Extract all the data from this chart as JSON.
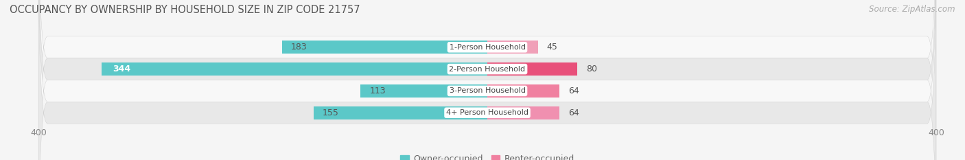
{
  "title": "OCCUPANCY BY OWNERSHIP BY HOUSEHOLD SIZE IN ZIP CODE 21757",
  "source": "Source: ZipAtlas.com",
  "categories": [
    "1-Person Household",
    "2-Person Household",
    "3-Person Household",
    "4+ Person Household"
  ],
  "owner_values": [
    183,
    344,
    113,
    155
  ],
  "renter_values": [
    45,
    80,
    64,
    64
  ],
  "owner_color": "#5bc8c8",
  "renter_color_1": "#f0a0b8",
  "renter_color_2": "#f06090",
  "renter_colors": [
    "#f0a0b8",
    "#e8507a",
    "#f080a0",
    "#f090b0"
  ],
  "axis_max": 400,
  "bg_color": "#f5f5f5",
  "row_bg_light": "#f8f8f8",
  "row_bg_dark": "#e8e8e8",
  "title_fontsize": 10.5,
  "source_fontsize": 8.5,
  "tick_fontsize": 9,
  "bar_label_fontsize": 9,
  "cat_label_fontsize": 8,
  "legend_fontsize": 9,
  "bar_height": 0.6
}
